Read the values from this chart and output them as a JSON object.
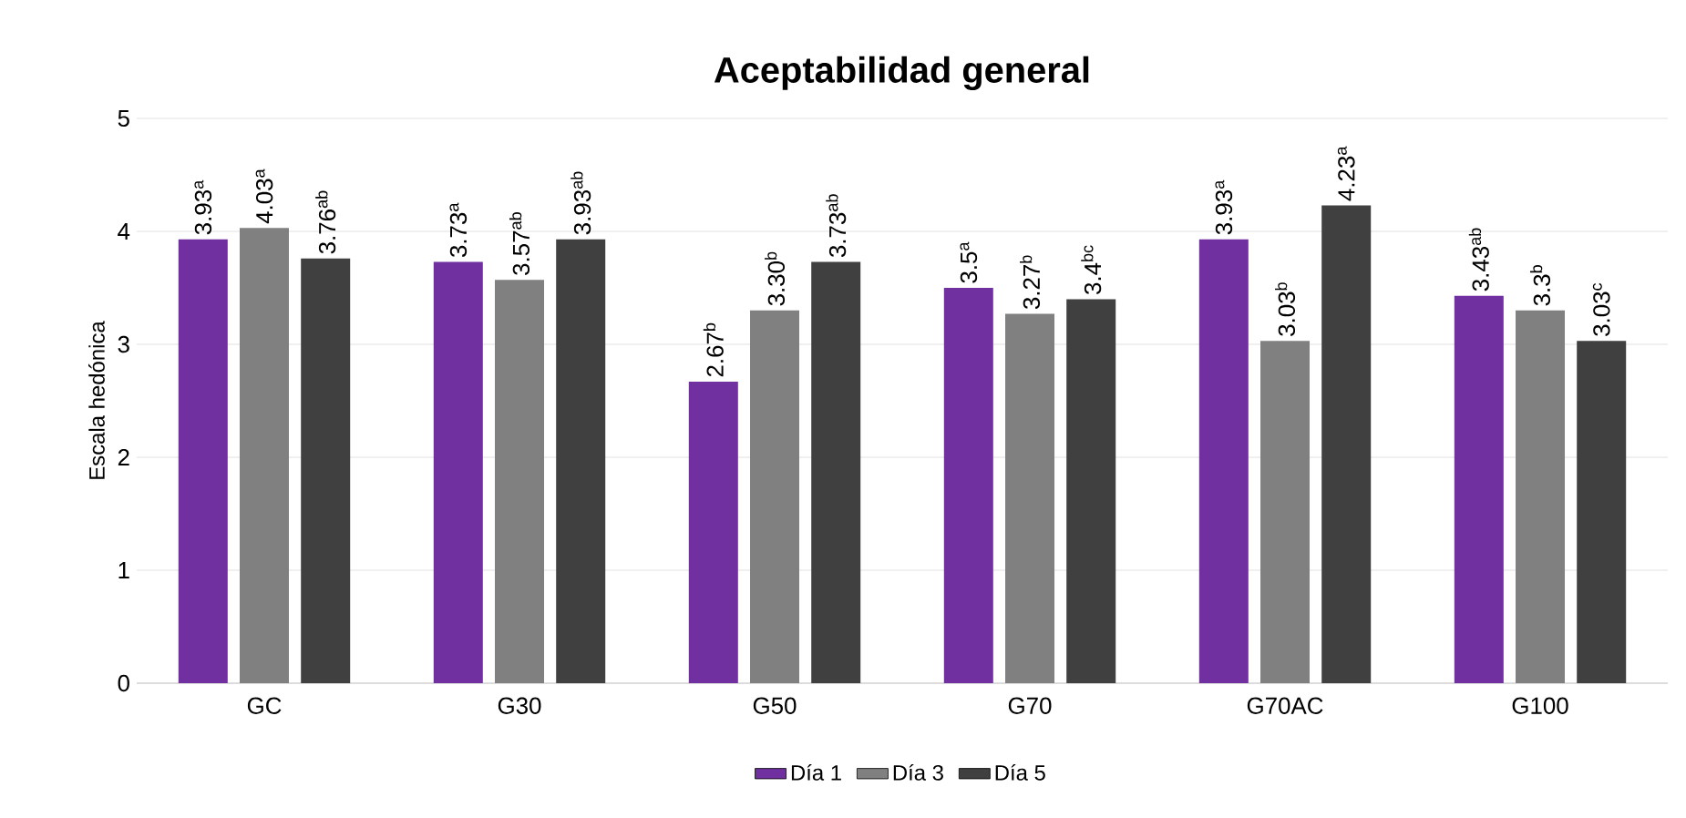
{
  "chart_data": {
    "type": "bar",
    "title": "Aceptabilidad general",
    "ylabel": "Escala hedónica",
    "categories": [
      "GC",
      "G30",
      "G50",
      "G70",
      "G70AC",
      "G100"
    ],
    "series": [
      {
        "name": "Día 1",
        "color": "#7030a0",
        "values": [
          3.93,
          3.73,
          2.67,
          3.5,
          3.93,
          3.43
        ],
        "value_labels": [
          "3.93$^{a}$",
          "3.73$^{a}$",
          "2.67$^{b}$",
          "3.5$^{a}$",
          "3.93$^{a}$",
          "3.43$^{ab}$"
        ]
      },
      {
        "name": "Día 3",
        "color": "#808080",
        "values": [
          4.03,
          3.57,
          3.3,
          3.27,
          3.03,
          3.3
        ],
        "value_labels": [
          "4.03$^{a}$",
          "3.57$^{ab}$",
          "3.30$^{b}$",
          "3.27$^{b}$",
          "3.03$^{b}$",
          "3.3$^{b}$"
        ]
      },
      {
        "name": "Día 5",
        "color": "#404040",
        "values": [
          3.76,
          3.93,
          3.73,
          3.4,
          4.23,
          3.03
        ],
        "value_labels": [
          "3.76$^{ab}$",
          "3.93$^{ab}$",
          "3.73$^{ab}$",
          "3.4$^{bc}$",
          "4.23$^{a}$",
          "3.03$^{c}$"
        ]
      }
    ],
    "ylim": [
      0,
      5
    ],
    "yticks": [
      0,
      1,
      2,
      3,
      4,
      5
    ],
    "grid": "y",
    "legend": "bottom"
  }
}
